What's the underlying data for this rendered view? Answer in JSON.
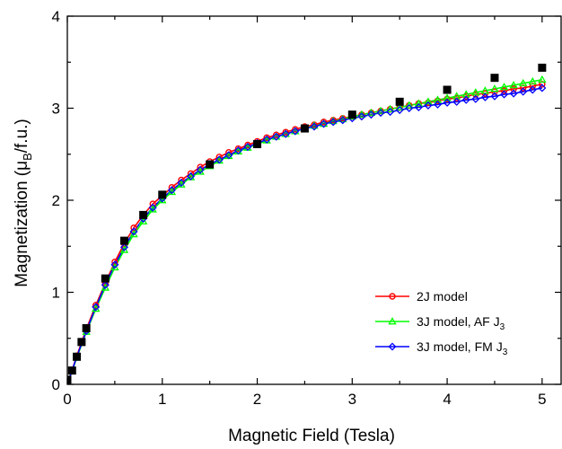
{
  "chart_data": {
    "type": "line",
    "xlabel": "Magnetic Field (Tesla)",
    "ylabel_parts": {
      "main": "Magnetization (μ",
      "sub": "B",
      "tail": "/f.u.)"
    },
    "xlim": [
      0,
      5.2
    ],
    "ylim": [
      0,
      4
    ],
    "x_ticks": [
      0,
      1,
      2,
      3,
      4,
      5
    ],
    "y_ticks": [
      0,
      1,
      2,
      3,
      4
    ],
    "grid": false,
    "legend_position": "bottom-right",
    "experimental": {
      "marker": "filled-square",
      "color": "#000000",
      "x": [
        0.0,
        0.05,
        0.1,
        0.15,
        0.2,
        0.4,
        0.6,
        0.8,
        1.0,
        1.5,
        2.0,
        2.5,
        3.0,
        3.5,
        4.0,
        4.5,
        5.0
      ],
      "y": [
        0.05,
        0.15,
        0.3,
        0.46,
        0.61,
        1.15,
        1.56,
        1.84,
        2.06,
        2.39,
        2.61,
        2.78,
        2.93,
        3.07,
        3.2,
        3.33,
        3.44
      ]
    },
    "x": [
      0.0,
      0.1,
      0.2,
      0.3,
      0.4,
      0.5,
      0.6,
      0.7,
      0.8,
      0.9,
      1.0,
      1.1,
      1.2,
      1.3,
      1.4,
      1.5,
      1.6,
      1.7,
      1.8,
      1.9,
      2.0,
      2.1,
      2.2,
      2.3,
      2.4,
      2.5,
      2.6,
      2.7,
      2.8,
      2.9,
      3.0,
      3.1,
      3.2,
      3.3,
      3.4,
      3.5,
      3.6,
      3.7,
      3.8,
      3.9,
      4.0,
      4.1,
      4.2,
      4.3,
      4.4,
      4.5,
      4.6,
      4.7,
      4.8,
      4.9,
      5.0
    ],
    "series": [
      {
        "name": "2J model",
        "color": "#ff0000",
        "marker": "open-circle",
        "values": [
          0.0,
          0.31,
          0.6,
          0.86,
          1.1,
          1.33,
          1.53,
          1.7,
          1.84,
          1.96,
          2.05,
          2.14,
          2.22,
          2.29,
          2.36,
          2.42,
          2.47,
          2.52,
          2.56,
          2.6,
          2.64,
          2.68,
          2.71,
          2.74,
          2.77,
          2.8,
          2.82,
          2.85,
          2.87,
          2.89,
          2.91,
          2.93,
          2.95,
          2.97,
          2.99,
          3.01,
          3.03,
          3.05,
          3.06,
          3.08,
          3.1,
          3.11,
          3.13,
          3.15,
          3.16,
          3.18,
          3.19,
          3.21,
          3.22,
          3.24,
          3.26
        ]
      },
      {
        "name": "3J model, AF J₃",
        "label_main": "3J model, AF J",
        "label_sub": "3",
        "color": "#00ff00",
        "marker": "open-triangle",
        "values": [
          0.0,
          0.29,
          0.57,
          0.82,
          1.05,
          1.27,
          1.46,
          1.63,
          1.77,
          1.9,
          2.0,
          2.09,
          2.17,
          2.25,
          2.31,
          2.37,
          2.43,
          2.48,
          2.53,
          2.57,
          2.61,
          2.65,
          2.69,
          2.72,
          2.75,
          2.78,
          2.81,
          2.83,
          2.86,
          2.88,
          2.91,
          2.93,
          2.95,
          2.97,
          2.99,
          3.01,
          3.03,
          3.05,
          3.07,
          3.09,
          3.11,
          3.13,
          3.15,
          3.17,
          3.19,
          3.21,
          3.23,
          3.25,
          3.27,
          3.29,
          3.31
        ]
      },
      {
        "name": "3J model, FM J₃",
        "label_main": "3J model, FM J",
        "label_sub": "3",
        "color": "#0000ff",
        "marker": "open-diamond",
        "values": [
          0.0,
          0.3,
          0.58,
          0.84,
          1.08,
          1.3,
          1.49,
          1.66,
          1.8,
          1.92,
          2.02,
          2.11,
          2.19,
          2.26,
          2.33,
          2.39,
          2.44,
          2.49,
          2.54,
          2.58,
          2.62,
          2.66,
          2.69,
          2.72,
          2.75,
          2.78,
          2.8,
          2.83,
          2.85,
          2.87,
          2.89,
          2.91,
          2.93,
          2.95,
          2.96,
          2.98,
          3.0,
          3.01,
          3.03,
          3.04,
          3.06,
          3.07,
          3.09,
          3.1,
          3.12,
          3.13,
          3.15,
          3.16,
          3.18,
          3.2,
          3.22
        ]
      }
    ]
  }
}
